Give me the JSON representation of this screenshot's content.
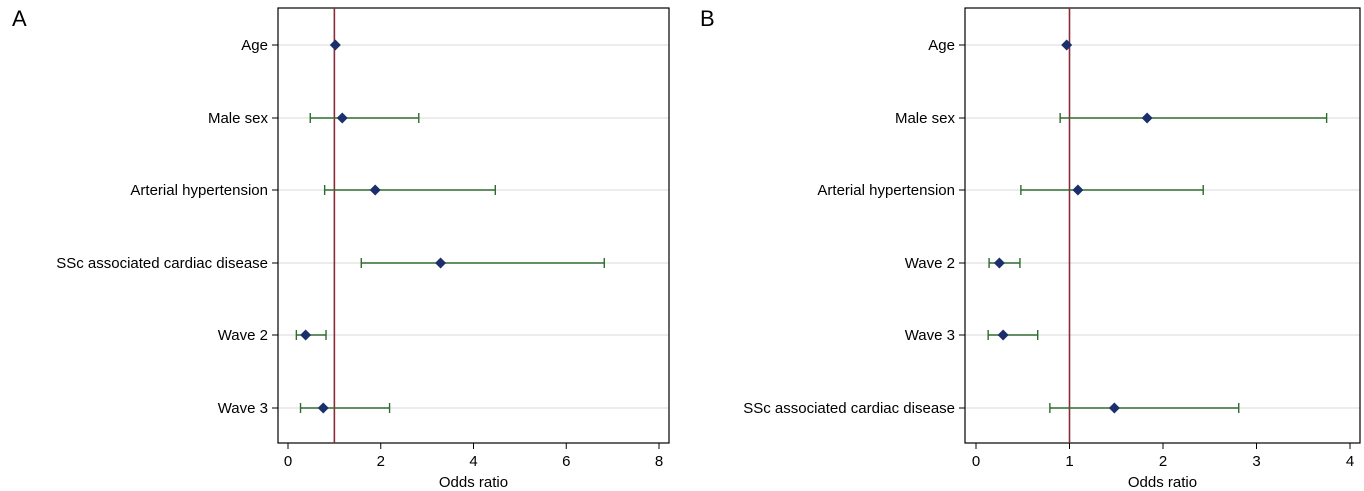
{
  "chart_data": [
    {
      "panel": "A",
      "type": "scatter",
      "xlabel": "Odds ratio",
      "xlim": [
        0,
        8
      ],
      "xticks": [
        0,
        2,
        4,
        6,
        8
      ],
      "reference_line": 1,
      "grid": "horizontal",
      "categories": [
        "Age",
        "Male sex",
        "Arterial hypertension",
        "SSc associated cardiac disease",
        "Wave 2",
        "Wave 3"
      ],
      "estimates": [
        1.02,
        1.17,
        1.88,
        3.29,
        0.38,
        0.76
      ],
      "ci_lower": [
        null,
        0.48,
        0.79,
        1.58,
        0.18,
        0.27
      ],
      "ci_upper": [
        null,
        2.82,
        4.47,
        6.82,
        0.82,
        2.19
      ]
    },
    {
      "panel": "B",
      "type": "scatter",
      "xlabel": "Odds ratio",
      "xlim": [
        0,
        4
      ],
      "xticks": [
        0,
        1,
        2,
        3,
        4
      ],
      "reference_line": 1,
      "grid": "horizontal",
      "categories": [
        "Age",
        "Male sex",
        "Arterial hypertension",
        "Wave 2",
        "Wave 3",
        "SSc associated cardiac disease"
      ],
      "estimates": [
        0.97,
        1.83,
        1.09,
        0.25,
        0.29,
        1.48
      ],
      "ci_lower": [
        null,
        0.9,
        0.48,
        0.14,
        0.13,
        0.79
      ],
      "ci_upper": [
        null,
        3.75,
        2.43,
        0.47,
        0.66,
        2.81
      ]
    }
  ],
  "colors": {
    "marker": "#1b2f6b",
    "ci": "#2e6b2e",
    "reference": "#8b2b3a",
    "grid": "#d9d9d9",
    "frame": "#000000"
  }
}
